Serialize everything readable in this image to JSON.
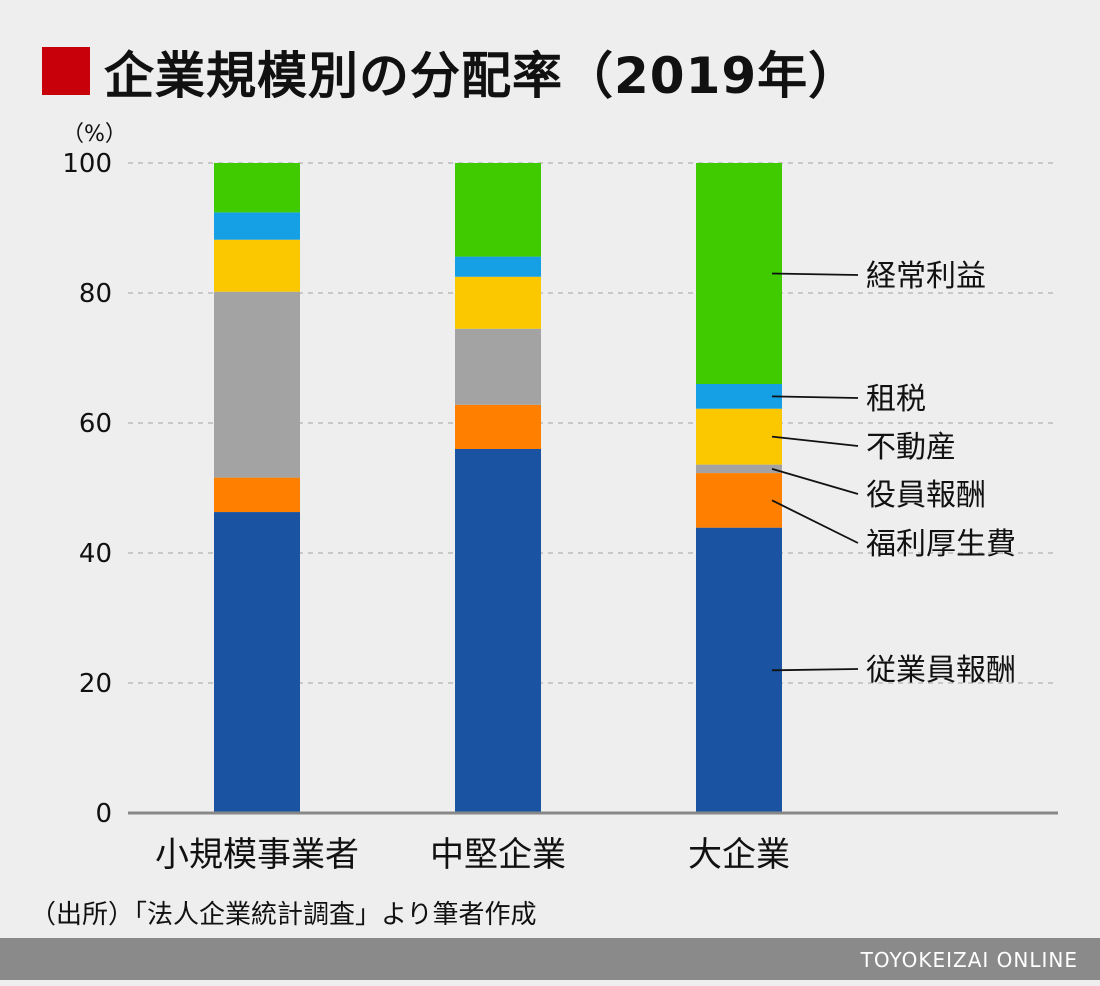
{
  "title": "企業規模別の分配率（2019年）",
  "source_note": "（出所）「法人企業統計調査」より筆者作成",
  "brand": "TOYOKEIZAI ONLINE",
  "colors": {
    "title_marker": "#c8000a",
    "gridline": "#bbbbbb",
    "axis": "#888888"
  },
  "chart_data": {
    "type": "bar",
    "stacked": true,
    "ylabel": "（%）",
    "ylim": [
      0,
      100
    ],
    "y_ticks": [
      "0",
      "20",
      "40",
      "60",
      "80",
      "100"
    ],
    "grid": true,
    "legend_placement": "right",
    "categories": [
      "小規模事業者",
      "中堅企業",
      "大企業"
    ],
    "series": [
      {
        "name": "従業員報酬",
        "color": "#1a53a2",
        "values": [
          46.3,
          56.0,
          43.9
        ]
      },
      {
        "name": "福利厚生費",
        "color": "#ff8000",
        "values": [
          5.3,
          6.8,
          8.4
        ]
      },
      {
        "name": "役員報酬",
        "color": "#a3a3a3",
        "values": [
          28.6,
          11.7,
          1.3
        ]
      },
      {
        "name": "不動産",
        "color": "#fbc800",
        "values": [
          8.0,
          8.0,
          8.6
        ]
      },
      {
        "name": "租税",
        "color": "#15a0e5",
        "values": [
          4.2,
          3.1,
          3.8
        ]
      },
      {
        "name": "経常利益",
        "color": "#3fcb00",
        "values": [
          7.6,
          14.4,
          34.0
        ]
      }
    ]
  }
}
